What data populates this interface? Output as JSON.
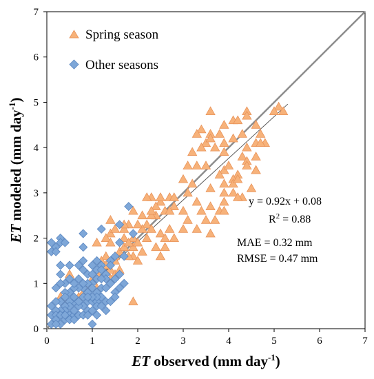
{
  "chart_data": {
    "type": "scatter",
    "title": "",
    "xlabel": {
      "italic": "ET",
      "rest": " observed (mm day",
      "sup": "-1",
      "close": ")"
    },
    "ylabel": {
      "italic": "ET",
      "rest": " modeled (mm day",
      "sup": "-1",
      "close": ")"
    },
    "xlim": [
      0,
      7
    ],
    "ylim": [
      0,
      7
    ],
    "xticks": [
      0,
      1,
      2,
      3,
      4,
      5,
      6,
      7
    ],
    "yticks": [
      0,
      1,
      2,
      3,
      4,
      5,
      6,
      7
    ],
    "grid": false,
    "legend_position": "top-left",
    "series": [
      {
        "name": "Spring season",
        "marker": "triangle",
        "color": "#f7b27a",
        "stroke": "#e8935a",
        "points": [
          [
            3.6,
            4.8
          ],
          [
            4.4,
            4.8
          ],
          [
            4.4,
            4.7
          ],
          [
            5.1,
            4.9
          ],
          [
            5.2,
            4.8
          ],
          [
            5.0,
            4.8
          ],
          [
            3.4,
            4.4
          ],
          [
            3.9,
            4.5
          ],
          [
            4.1,
            4.6
          ],
          [
            4.2,
            4.6
          ],
          [
            4.6,
            4.5
          ],
          [
            4.7,
            4.3
          ],
          [
            4.8,
            4.1
          ],
          [
            4.3,
            4.3
          ],
          [
            3.6,
            4.3
          ],
          [
            3.8,
            4.3
          ],
          [
            3.3,
            4.3
          ],
          [
            3.5,
            4.1
          ],
          [
            3.6,
            4.2
          ],
          [
            4.1,
            4.2
          ],
          [
            3.9,
            4.1
          ],
          [
            3.7,
            4.0
          ],
          [
            3.9,
            3.9
          ],
          [
            4.4,
            4.0
          ],
          [
            4.6,
            4.1
          ],
          [
            4.7,
            4.1
          ],
          [
            3.4,
            4.0
          ],
          [
            3.2,
            3.9
          ],
          [
            3.1,
            3.6
          ],
          [
            3.5,
            3.6
          ],
          [
            3.9,
            3.5
          ],
          [
            4.0,
            3.6
          ],
          [
            4.3,
            3.8
          ],
          [
            4.6,
            3.8
          ],
          [
            4.4,
            3.7
          ],
          [
            4.2,
            3.4
          ],
          [
            4.1,
            3.3
          ],
          [
            3.8,
            3.4
          ],
          [
            3.9,
            3.2
          ],
          [
            4.1,
            3.2
          ],
          [
            4.2,
            3.3
          ],
          [
            4.6,
            3.5
          ],
          [
            3.3,
            3.6
          ],
          [
            3.0,
            3.3
          ],
          [
            3.2,
            3.2
          ],
          [
            3.6,
            3.1
          ],
          [
            3.9,
            3.0
          ],
          [
            4.1,
            3.0
          ],
          [
            4.3,
            2.9
          ],
          [
            3.9,
            2.8
          ],
          [
            3.6,
            2.7
          ],
          [
            3.8,
            2.6
          ],
          [
            3.4,
            2.6
          ],
          [
            3.0,
            2.6
          ],
          [
            2.8,
            2.7
          ],
          [
            2.7,
            2.9
          ],
          [
            2.5,
            2.8
          ],
          [
            2.5,
            2.9
          ],
          [
            2.3,
            2.9
          ],
          [
            2.2,
            2.9
          ],
          [
            2.4,
            2.7
          ],
          [
            2.4,
            2.5
          ],
          [
            2.3,
            2.5
          ],
          [
            2.2,
            2.3
          ],
          [
            2.3,
            2.2
          ],
          [
            2.1,
            2.2
          ],
          [
            2.0,
            2.3
          ],
          [
            1.8,
            2.3
          ],
          [
            1.7,
            2.0
          ],
          [
            1.7,
            2.2
          ],
          [
            1.9,
            2.0
          ],
          [
            1.9,
            1.6
          ],
          [
            1.9,
            1.8
          ],
          [
            2.0,
            1.9
          ],
          [
            2.1,
            1.7
          ],
          [
            2.5,
            2.1
          ],
          [
            2.6,
            2.0
          ],
          [
            2.7,
            2.2
          ],
          [
            2.8,
            2.0
          ],
          [
            3.0,
            2.2
          ],
          [
            3.3,
            2.2
          ],
          [
            2.6,
            1.8
          ],
          [
            2.4,
            1.8
          ],
          [
            2.5,
            1.6
          ],
          [
            2.0,
            1.5
          ],
          [
            1.8,
            1.6
          ],
          [
            1.6,
            1.7
          ],
          [
            1.7,
            1.8
          ],
          [
            1.5,
            1.6
          ],
          [
            1.5,
            1.5
          ],
          [
            1.3,
            1.6
          ],
          [
            1.2,
            1.5
          ],
          [
            1.3,
            1.4
          ],
          [
            1.4,
            1.3
          ],
          [
            1.5,
            1.2
          ],
          [
            1.6,
            1.3
          ],
          [
            1.4,
            1.1
          ],
          [
            1.2,
            1.3
          ],
          [
            1.1,
            1.2
          ],
          [
            1.0,
            1.1
          ],
          [
            1.1,
            0.9
          ],
          [
            0.9,
            0.9
          ],
          [
            0.8,
            0.8
          ],
          [
            0.7,
            0.7
          ],
          [
            0.4,
            0.6
          ],
          [
            0.3,
            0.7
          ],
          [
            1.4,
            2.4
          ],
          [
            1.4,
            2.1
          ],
          [
            1.3,
            2.0
          ],
          [
            1.4,
            1.9
          ],
          [
            1.5,
            2.2
          ],
          [
            1.7,
            2.3
          ],
          [
            1.9,
            2.6
          ],
          [
            2.1,
            2.5
          ],
          [
            2.3,
            2.6
          ],
          [
            2.6,
            2.6
          ],
          [
            2.8,
            2.9
          ],
          [
            3.1,
            2.4
          ],
          [
            3.5,
            2.4
          ],
          [
            3.7,
            2.4
          ],
          [
            3.6,
            2.1
          ],
          [
            3.9,
            2.6
          ],
          [
            4.2,
            2.9
          ],
          [
            4.5,
            3.1
          ],
          [
            4.6,
            3.5
          ],
          [
            4.4,
            3.6
          ],
          [
            1.9,
            0.6
          ],
          [
            0.5,
            1.2
          ],
          [
            1.1,
            1.9
          ],
          [
            2.7,
            2.6
          ],
          [
            3.1,
            3.0
          ],
          [
            3.3,
            2.8
          ],
          [
            1.8,
            1.9
          ],
          [
            2.2,
            2.0
          ]
        ]
      },
      {
        "name": "Other seasons",
        "marker": "diamond",
        "color": "#7ea7d8",
        "stroke": "#5a86c0",
        "points": [
          [
            0.3,
            2.0
          ],
          [
            0.3,
            1.9
          ],
          [
            0.4,
            1.9
          ],
          [
            0.1,
            1.9
          ],
          [
            0.2,
            1.8
          ],
          [
            0.1,
            1.7
          ],
          [
            0.2,
            1.7
          ],
          [
            0.3,
            1.2
          ],
          [
            0.3,
            1.4
          ],
          [
            0.5,
            1.4
          ],
          [
            0.7,
            1.4
          ],
          [
            0.8,
            1.3
          ],
          [
            0.8,
            1.5
          ],
          [
            0.8,
            1.8
          ],
          [
            0.8,
            2.1
          ],
          [
            1.2,
            2.2
          ],
          [
            1.8,
            2.7
          ],
          [
            1.6,
            2.3
          ],
          [
            1.9,
            2.1
          ],
          [
            1.6,
            1.9
          ],
          [
            1.5,
            1.6
          ],
          [
            1.7,
            1.6
          ],
          [
            1.4,
            1.5
          ],
          [
            1.2,
            1.4
          ],
          [
            1.1,
            1.3
          ],
          [
            1.3,
            1.2
          ],
          [
            1.1,
            1.1
          ],
          [
            0.9,
            1.2
          ],
          [
            1.0,
            1.0
          ],
          [
            1.0,
            0.9
          ],
          [
            1.1,
            0.8
          ],
          [
            1.2,
            0.9
          ],
          [
            1.3,
            0.9
          ],
          [
            1.4,
            1.0
          ],
          [
            1.5,
            0.8
          ],
          [
            0.9,
            0.8
          ],
          [
            0.8,
            0.7
          ],
          [
            0.9,
            0.6
          ],
          [
            1.0,
            0.6
          ],
          [
            1.1,
            0.6
          ],
          [
            0.8,
            0.5
          ],
          [
            0.7,
            0.5
          ],
          [
            0.6,
            0.6
          ],
          [
            0.5,
            0.6
          ],
          [
            0.5,
            0.5
          ],
          [
            0.4,
            0.5
          ],
          [
            0.4,
            0.4
          ],
          [
            0.3,
            0.4
          ],
          [
            0.2,
            0.4
          ],
          [
            0.1,
            0.3
          ],
          [
            0.2,
            0.3
          ],
          [
            0.3,
            0.3
          ],
          [
            0.4,
            0.2
          ],
          [
            0.5,
            0.3
          ],
          [
            0.6,
            0.3
          ],
          [
            0.7,
            0.3
          ],
          [
            0.8,
            0.3
          ],
          [
            0.9,
            0.4
          ],
          [
            1.0,
            0.4
          ],
          [
            1.1,
            0.5
          ],
          [
            1.2,
            0.5
          ],
          [
            1.3,
            0.6
          ],
          [
            1.2,
            0.7
          ],
          [
            1.1,
            0.7
          ],
          [
            1.0,
            0.7
          ],
          [
            0.9,
            0.7
          ],
          [
            0.8,
            0.9
          ],
          [
            0.7,
            0.9
          ],
          [
            0.6,
            0.9
          ],
          [
            0.5,
            0.8
          ],
          [
            0.4,
            0.8
          ],
          [
            0.6,
            0.7
          ],
          [
            0.7,
            0.6
          ],
          [
            0.2,
            0.2
          ],
          [
            0.3,
            0.1
          ],
          [
            0.1,
            0.1
          ],
          [
            0.2,
            0.1
          ],
          [
            1.0,
            0.1
          ],
          [
            0.9,
            0.3
          ],
          [
            1.1,
            0.3
          ],
          [
            1.3,
            0.4
          ],
          [
            1.4,
            0.6
          ],
          [
            1.5,
            0.7
          ],
          [
            1.6,
            0.9
          ],
          [
            1.7,
            1.0
          ],
          [
            1.5,
            1.1
          ],
          [
            1.6,
            1.2
          ],
          [
            1.3,
            1.1
          ],
          [
            1.2,
            1.1
          ],
          [
            0.9,
            1.0
          ],
          [
            0.6,
            1.0
          ],
          [
            0.5,
            1.1
          ],
          [
            0.4,
            1.0
          ],
          [
            0.3,
            1.0
          ],
          [
            0.2,
            0.9
          ],
          [
            0.3,
            0.6
          ],
          [
            0.4,
            0.7
          ],
          [
            0.6,
            0.4
          ],
          [
            0.5,
            0.2
          ],
          [
            0.1,
            0.5
          ],
          [
            0.2,
            0.6
          ],
          [
            1.0,
            1.2
          ],
          [
            1.2,
            1.3
          ],
          [
            1.4,
            1.4
          ],
          [
            0.7,
            1.1
          ],
          [
            0.8,
            1.0
          ],
          [
            1.0,
            1.4
          ],
          [
            1.1,
            1.5
          ],
          [
            0.6,
            0.2
          ],
          [
            0.4,
            0.3
          ]
        ]
      }
    ],
    "lines": [
      {
        "name": "1:1",
        "from": [
          0,
          0
        ],
        "to": [
          7,
          7
        ],
        "color": "#8c8c8c",
        "width": 2.5
      },
      {
        "name": "fit",
        "from": [
          0.25,
          0.31
        ],
        "to": [
          5.3,
          4.96
        ],
        "color": "#595959",
        "width": 1
      }
    ],
    "annotations": {
      "equation": "y = 0.92x + 0.08",
      "r2_prefix": "R",
      "r2_sup": "2",
      "r2_value": " = 0.88",
      "mae": "MAE = 0.32 mm",
      "rmse": "RMSE = 0.47 mm"
    }
  }
}
